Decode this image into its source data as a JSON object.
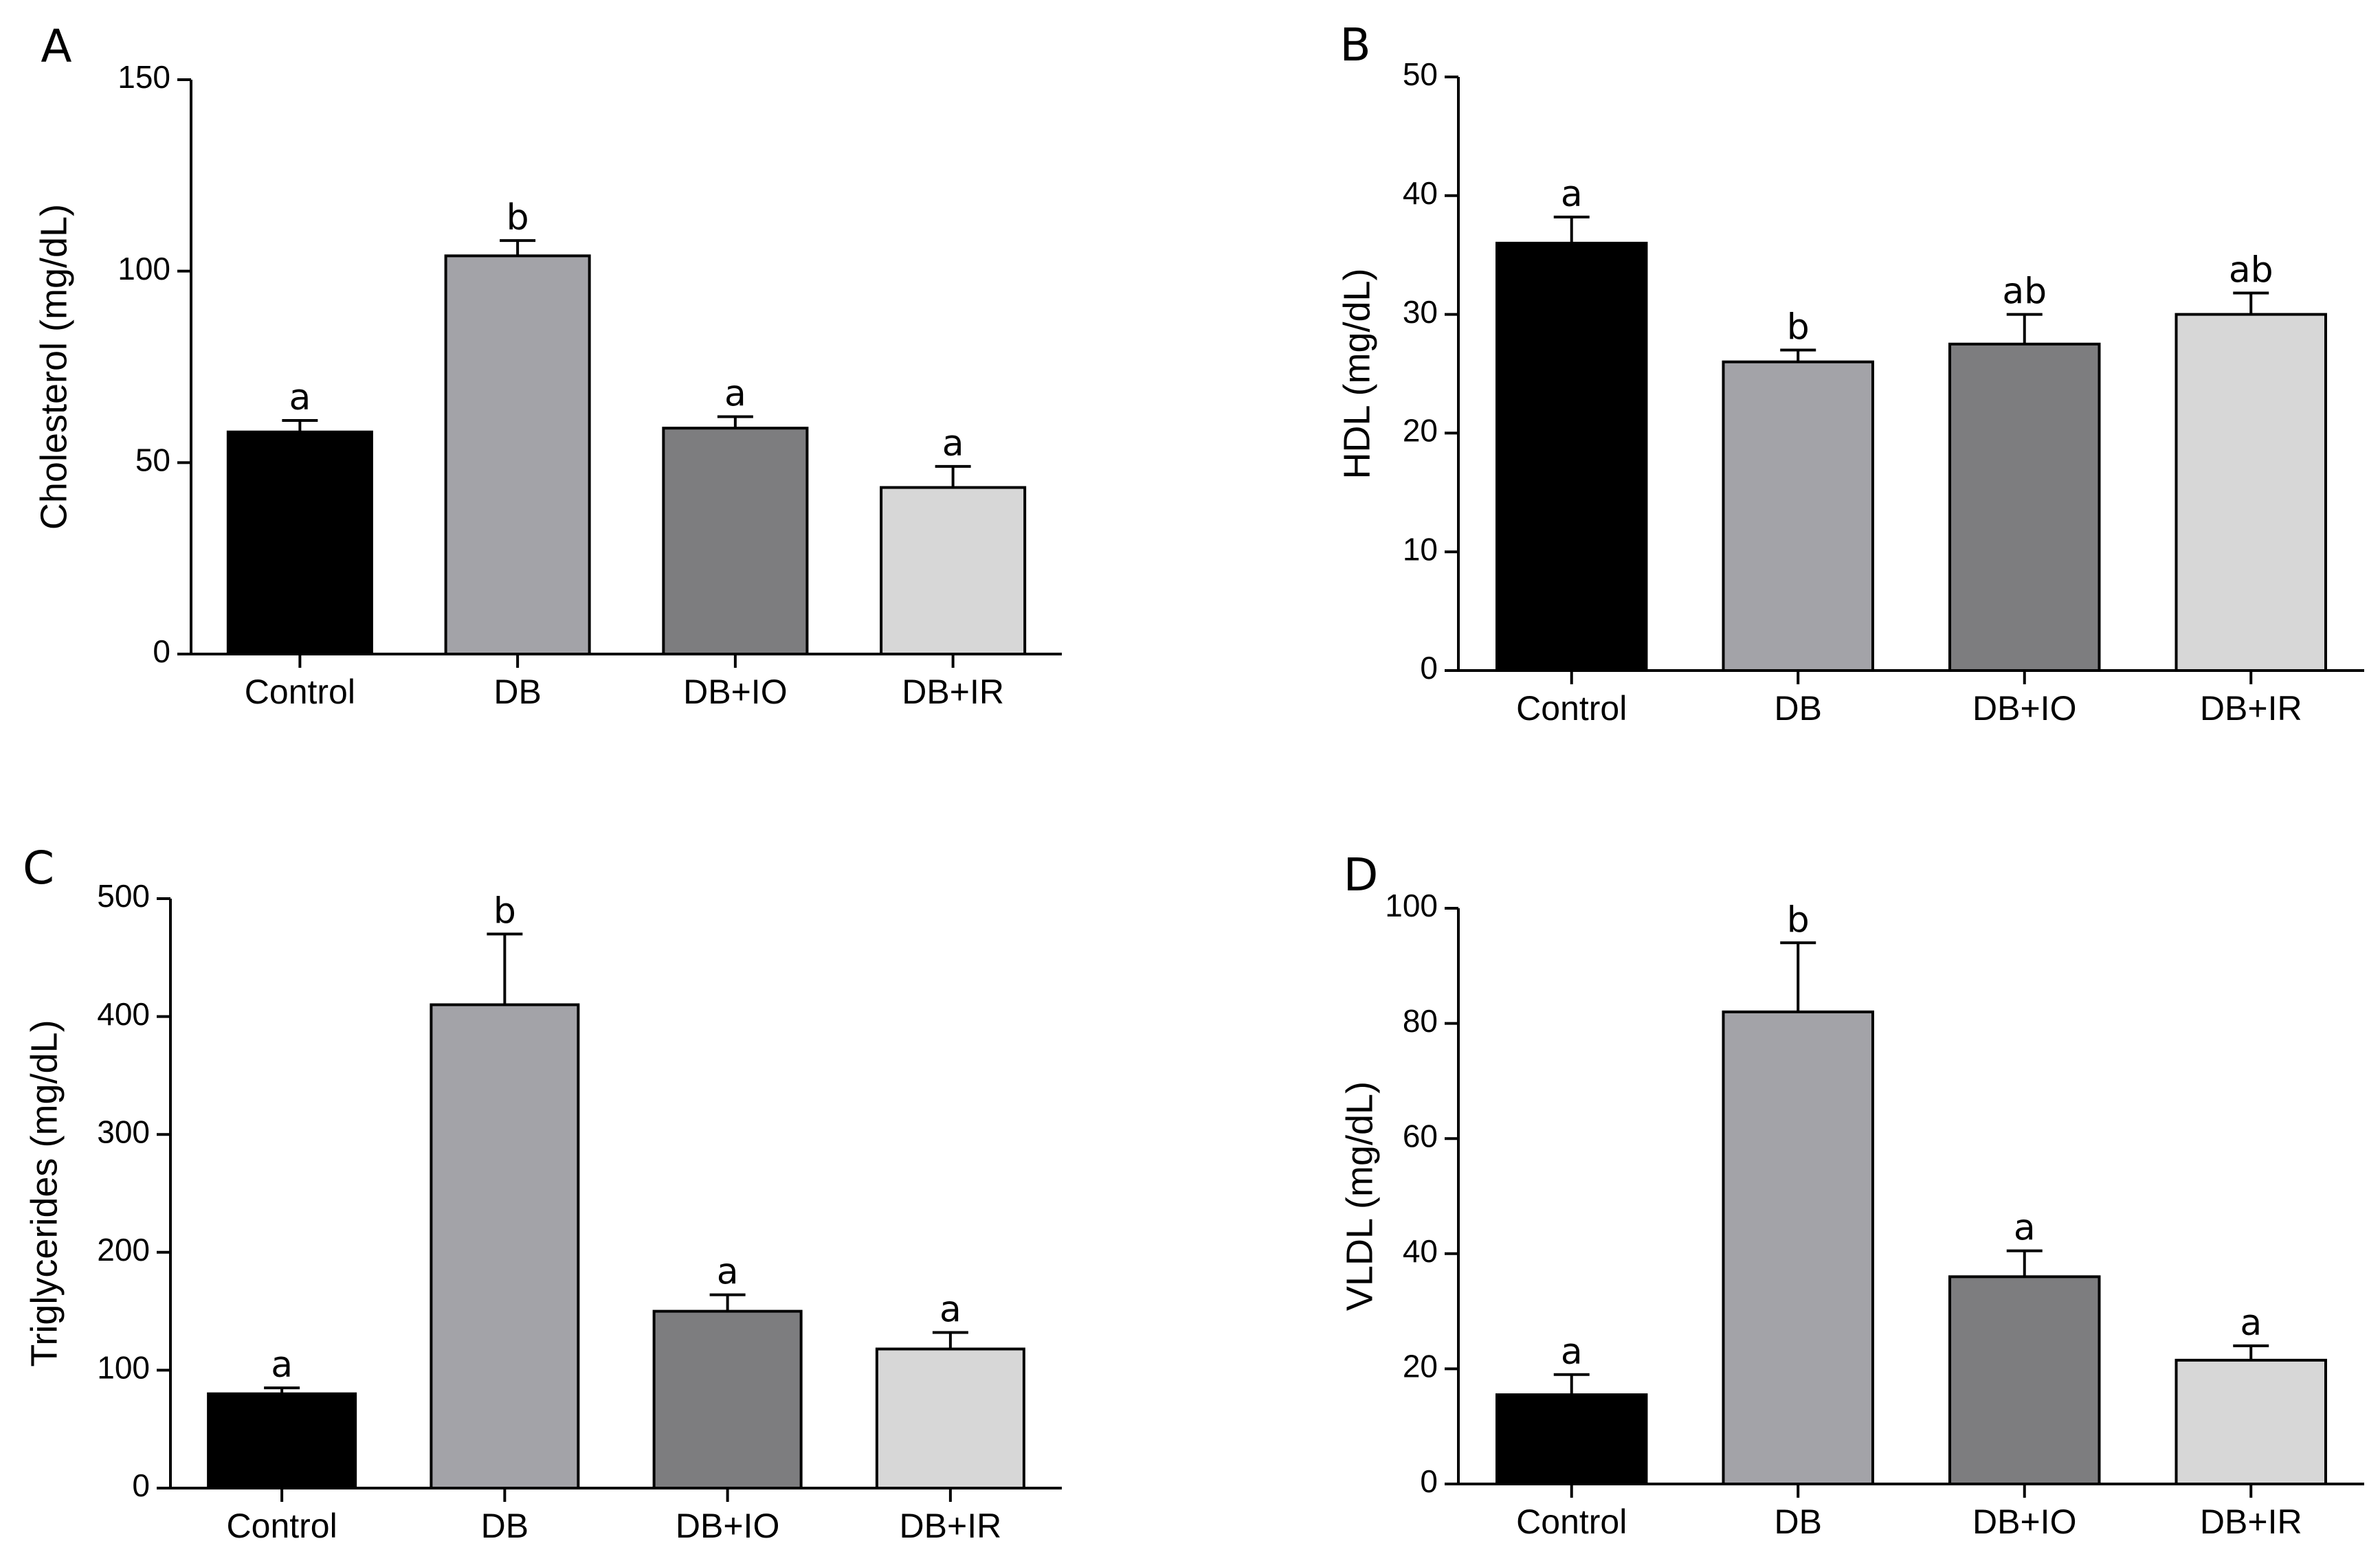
{
  "colors": {
    "Control": "#000000",
    "DB": "#a3a3a8",
    "DB+IO": "#7d7d7f",
    "DB+IR": "#d7d7d7"
  },
  "chart_data": [
    {
      "panel": "A",
      "type": "bar",
      "ylabel": "Cholesterol (mg/dL)",
      "ylim": [
        0,
        150
      ],
      "yticks": [
        "0",
        "50",
        "100",
        "150"
      ],
      "categories": [
        "Control",
        "DB",
        "DB+IO",
        "DB+IR"
      ],
      "values": [
        58,
        104,
        59,
        43.5
      ],
      "errors": [
        3,
        4,
        3,
        5.5
      ],
      "letters": [
        "a",
        "b",
        "a",
        "a"
      ]
    },
    {
      "panel": "B",
      "type": "bar",
      "ylabel": "HDL (mg/dL)",
      "ylim": [
        0,
        50
      ],
      "yticks": [
        "0",
        "10",
        "20",
        "30",
        "40",
        "50"
      ],
      "categories": [
        "Control",
        "DB",
        "DB+IO",
        "DB+IR"
      ],
      "values": [
        36,
        26,
        27.5,
        30
      ],
      "errors": [
        2.2,
        1,
        2.5,
        1.8
      ],
      "letters": [
        "a",
        "b",
        "ab",
        "ab"
      ]
    },
    {
      "panel": "C",
      "type": "bar",
      "ylabel": "Triglycerides (mg/dL)",
      "ylim": [
        0,
        500
      ],
      "yticks": [
        "0",
        "100",
        "200",
        "300",
        "400",
        "500"
      ],
      "categories": [
        "Control",
        "DB",
        "DB+IO",
        "DB+IR"
      ],
      "values": [
        80,
        410,
        150,
        118
      ],
      "errors": [
        5,
        60,
        14,
        14
      ],
      "letters": [
        "a",
        "b",
        "a",
        "a"
      ]
    },
    {
      "panel": "D",
      "type": "bar",
      "ylabel": "VLDL (mg/dL)",
      "ylim": [
        0,
        100
      ],
      "yticks": [
        "0",
        "20",
        "40",
        "60",
        "80",
        "100"
      ],
      "categories": [
        "Control",
        "DB",
        "DB+IO",
        "DB+IR"
      ],
      "values": [
        15.5,
        82,
        36,
        21.5
      ],
      "errors": [
        3.5,
        12,
        4.5,
        2.5
      ],
      "letters": [
        "a",
        "b",
        "a",
        "a"
      ]
    }
  ]
}
